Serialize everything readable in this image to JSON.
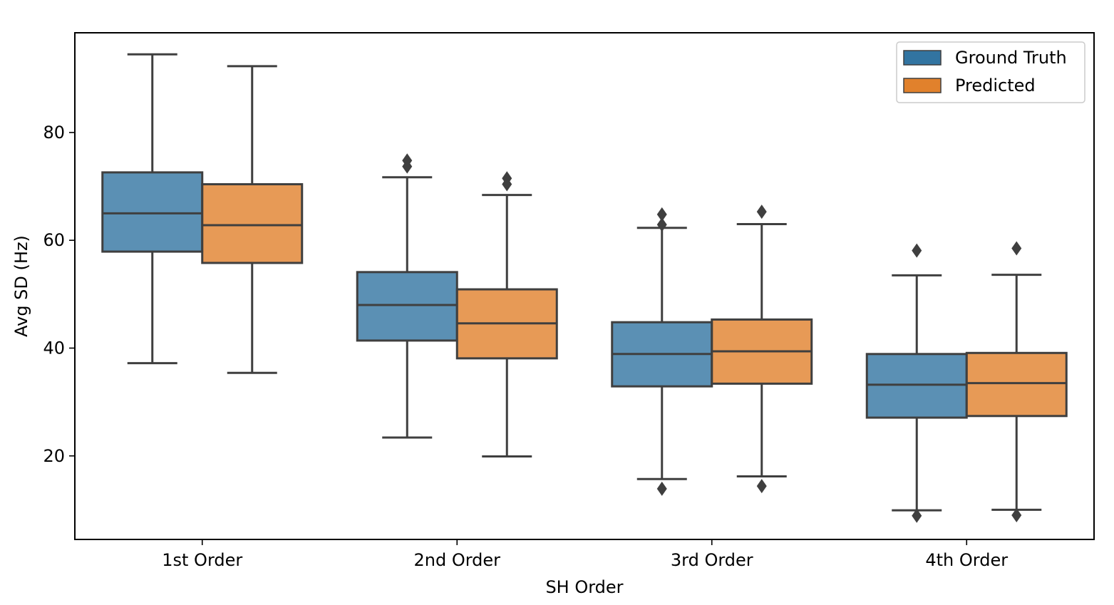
{
  "chart_data": {
    "type": "box",
    "title": "",
    "xlabel": "SH Order",
    "ylabel": "Avg SD (Hz)",
    "ylim": [
      4.5,
      98.5
    ],
    "yticks": [
      20,
      40,
      60,
      80
    ],
    "categories": [
      "1st Order",
      "2nd Order",
      "3rd Order",
      "4th Order"
    ],
    "legend_position": "top-right",
    "grid": false,
    "series": [
      {
        "name": "Ground Truth",
        "color": "#3274a1",
        "boxes": [
          {
            "whisker_low": 37.2,
            "q1": 57.9,
            "median": 65.0,
            "q3": 72.6,
            "whisker_high": 94.5,
            "outliers": []
          },
          {
            "whisker_low": 23.4,
            "q1": 41.4,
            "median": 48.0,
            "q3": 54.1,
            "whisker_high": 71.7,
            "outliers": [
              73.7,
              74.8
            ]
          },
          {
            "whisker_low": 15.7,
            "q1": 32.9,
            "median": 38.9,
            "q3": 44.8,
            "whisker_high": 62.3,
            "outliers": [
              13.9,
              62.9,
              64.8
            ]
          },
          {
            "whisker_low": 9.9,
            "q1": 27.1,
            "median": 33.2,
            "q3": 38.9,
            "whisker_high": 53.5,
            "outliers": [
              8.9,
              58.1
            ]
          }
        ]
      },
      {
        "name": "Predicted",
        "color": "#e1812c",
        "boxes": [
          {
            "whisker_low": 35.4,
            "q1": 55.8,
            "median": 62.8,
            "q3": 70.4,
            "whisker_high": 92.3,
            "outliers": []
          },
          {
            "whisker_low": 19.9,
            "q1": 38.1,
            "median": 44.6,
            "q3": 50.9,
            "whisker_high": 68.4,
            "outliers": [
              70.4,
              71.5
            ]
          },
          {
            "whisker_low": 16.2,
            "q1": 33.4,
            "median": 39.4,
            "q3": 45.3,
            "whisker_high": 63.0,
            "outliers": [
              14.4,
              65.3
            ]
          },
          {
            "whisker_low": 10.0,
            "q1": 27.4,
            "median": 33.5,
            "q3": 39.1,
            "whisker_high": 53.6,
            "outliers": [
              9.0,
              58.5
            ]
          }
        ]
      }
    ]
  }
}
